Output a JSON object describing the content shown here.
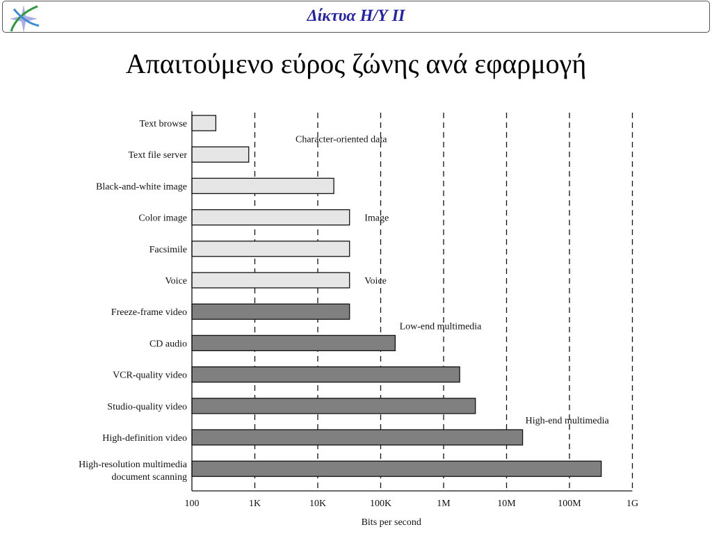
{
  "header": {
    "title": "Δίκτυα Η/Υ ΙΙ",
    "logo_icon": "star-swirl-logo"
  },
  "slide": {
    "title": "Απαιτούμενο εύρος ζώνης ανά εφαρμογή"
  },
  "chart_data": {
    "type": "bar",
    "orientation": "horizontal",
    "scale": "log",
    "xlim": [
      100,
      1000000000
    ],
    "grid": "dashed vertical lines at each decade",
    "xlabel": "Bits per second",
    "x_ticks": [
      "100",
      "1K",
      "10K",
      "100K",
      "1M",
      "10M",
      "100M",
      "1G"
    ],
    "categories": [
      [
        "Text browse"
      ],
      [
        "Text file server"
      ],
      [
        "Black-and-white image"
      ],
      [
        "Color image"
      ],
      [
        "Facsimile"
      ],
      [
        "Voice"
      ],
      [
        "Freeze-frame video"
      ],
      [
        "CD audio"
      ],
      [
        "VCR-quality video"
      ],
      [
        "Studio-quality video"
      ],
      [
        "High-definition video"
      ],
      [
        "High-resolution multimedia",
        "document scanning"
      ]
    ],
    "values": [
      240,
      800,
      18000,
      32000,
      32000,
      32000,
      32000,
      170000,
      1800000,
      3200000,
      18000000,
      320000000
    ],
    "groups": [
      "light",
      "light",
      "light",
      "light",
      "light",
      "light",
      "dark",
      "dark",
      "dark",
      "dark",
      "dark",
      "dark"
    ],
    "group_colors": {
      "light": "#e6e6e6",
      "dark": "#808080"
    },
    "annotations": [
      {
        "text": "Character-oriented data",
        "x": 4000,
        "row": 0.5
      },
      {
        "text": "Image",
        "x": 50000,
        "row": 3
      },
      {
        "text": "Voice",
        "x": 50000,
        "row": 5
      },
      {
        "text": "Low-end multimedia",
        "x": 180000,
        "row": 6.45
      },
      {
        "text": "High-end multimedia",
        "x": 18000000,
        "row": 9.45
      }
    ]
  }
}
